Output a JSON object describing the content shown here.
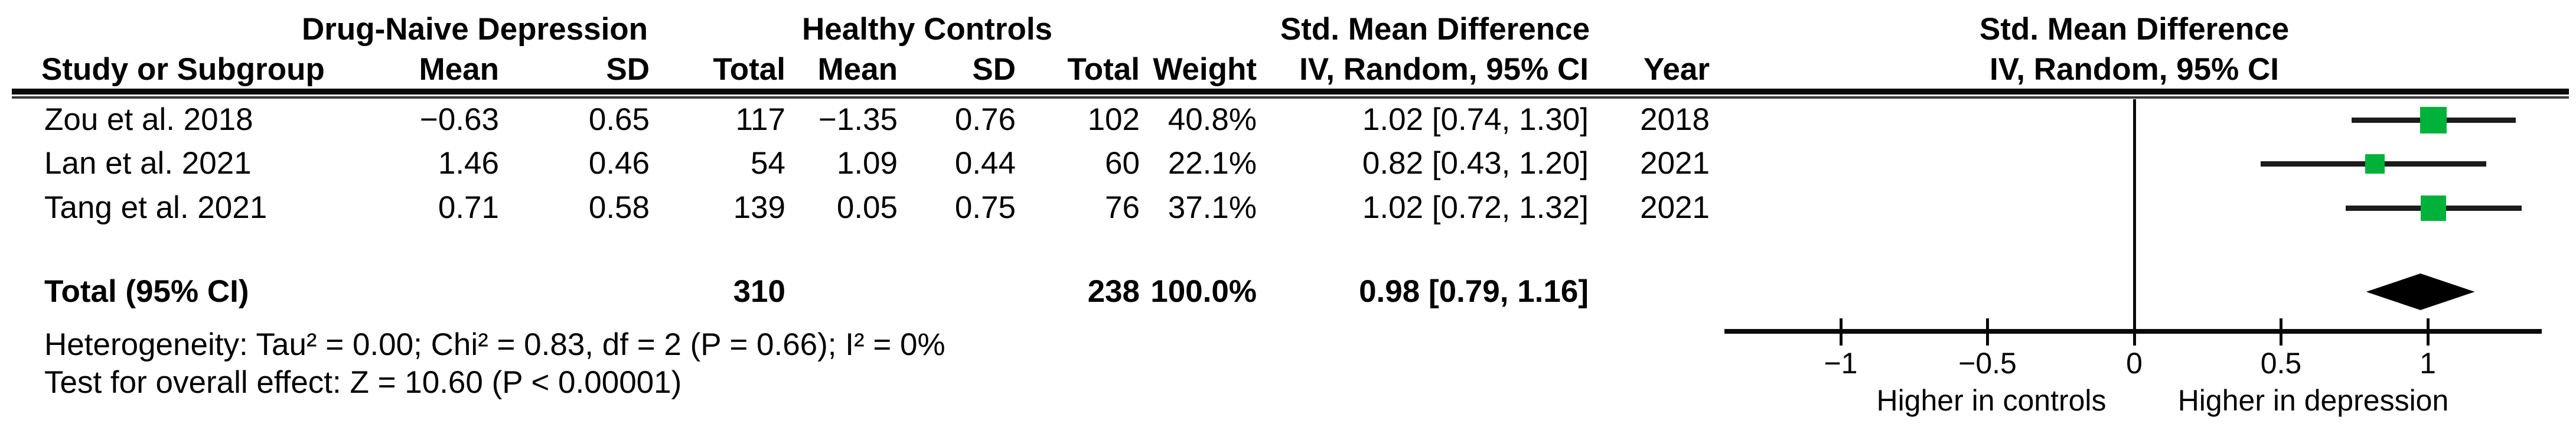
{
  "table": {
    "group_headers": {
      "experimental": "Drug-Naive Depression",
      "control": "Healthy Controls",
      "effect_left": "Std. Mean Difference",
      "effect_right": "Std. Mean Difference"
    },
    "columns": {
      "study": "Study or Subgroup",
      "mean1": "Mean",
      "sd1": "SD",
      "total1": "Total",
      "mean2": "Mean",
      "sd2": "SD",
      "total2": "Total",
      "weight": "Weight",
      "ci": "IV, Random, 95% CI",
      "year": "Year",
      "ci_plot": "IV, Random, 95% CI"
    },
    "rows": [
      {
        "study": "Zou et al. 2018",
        "mean1": "−0.63",
        "sd1": "0.65",
        "total1": "117",
        "mean2": "−1.35",
        "sd2": "0.76",
        "total2": "102",
        "weight": "40.8%",
        "ci": "1.02 [0.74, 1.30]",
        "year": "2018"
      },
      {
        "study": "Lan et al. 2021",
        "mean1": "1.46",
        "sd1": "0.46",
        "total1": "54",
        "mean2": "1.09",
        "sd2": "0.44",
        "total2": "60",
        "weight": "22.1%",
        "ci": "0.82 [0.43, 1.20]",
        "year": "2021"
      },
      {
        "study": "Tang et al. 2021",
        "mean1": "0.71",
        "sd1": "0.58",
        "total1": "139",
        "mean2": "0.05",
        "sd2": "0.75",
        "total2": "76",
        "weight": "37.1%",
        "ci": "1.02 [0.72, 1.32]",
        "year": "2021"
      }
    ],
    "total_row": {
      "label": "Total (95% CI)",
      "total1": "310",
      "total2": "238",
      "weight": "100.0%",
      "ci": "0.98 [0.79, 1.16]"
    },
    "footer": {
      "heterogeneity": "Heterogeneity: Tau² = 0.00; Chi² = 0.83, df = 2 (P = 0.66); I² = 0%",
      "overall_effect": "Test for overall effect: Z = 10.60 (P < 0.00001)"
    }
  },
  "chart_data": {
    "type": "scatter",
    "variant": "forest-plot",
    "title": "Std. Mean Difference",
    "effect_measure": "IV, Random, 95% CI",
    "model": "Random effects (Inverse Variance)",
    "studies": [
      {
        "name": "Zou et al. 2018",
        "es": 1.02,
        "ci_low": 0.74,
        "ci_high": 1.3,
        "weight_pct": 40.8,
        "year": 2018
      },
      {
        "name": "Lan et al. 2021",
        "es": 0.82,
        "ci_low": 0.43,
        "ci_high": 1.2,
        "weight_pct": 22.1,
        "year": 2021
      },
      {
        "name": "Tang et al. 2021",
        "es": 1.02,
        "ci_low": 0.72,
        "ci_high": 1.32,
        "weight_pct": 37.1,
        "year": 2021
      }
    ],
    "total": {
      "es": 0.98,
      "ci_low": 0.79,
      "ci_high": 1.16,
      "n_experimental": 310,
      "n_control": 238,
      "weight_pct": 100.0
    },
    "heterogeneity": {
      "tau2": 0.0,
      "chi2": 0.83,
      "df": 2,
      "p": 0.66,
      "i2_pct": 0
    },
    "overall_test": {
      "z": 10.6,
      "p": "< 0.00001"
    },
    "axis": {
      "ticks": [
        -1,
        -0.5,
        0,
        0.5,
        1
      ],
      "tick_labels": [
        "−1",
        "−0.5",
        "0",
        "0.5",
        "1"
      ],
      "xlim": [
        -1.4,
        1.4
      ],
      "zero_line": 0
    },
    "direction_labels": {
      "left": "Higher in controls",
      "right": "Higher in depression"
    },
    "colors": {
      "marker": "#00b23a",
      "diamond": "#000000",
      "line": "#1c1c1c",
      "axis": "#0a0a0a"
    }
  }
}
